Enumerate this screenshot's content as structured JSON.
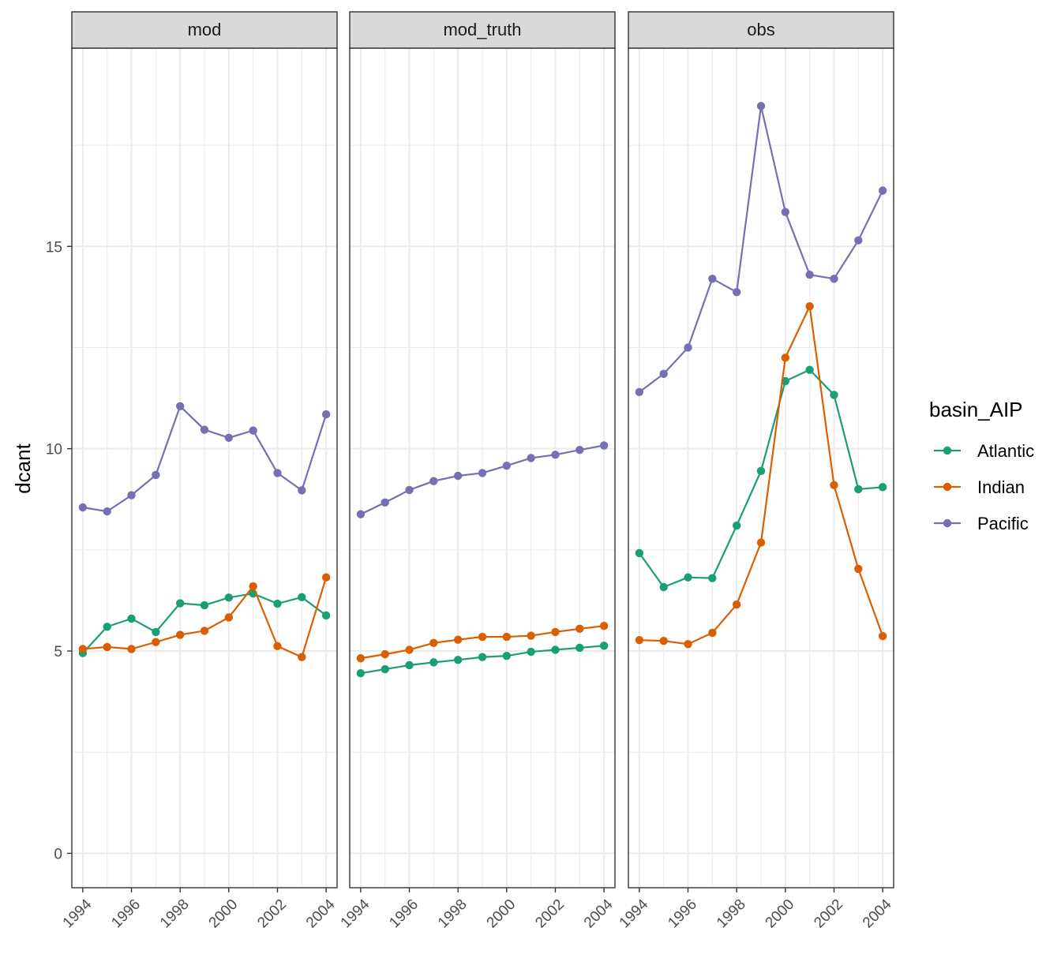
{
  "chart_data": {
    "type": "line",
    "facet_variable_values": [
      "mod",
      "mod_truth",
      "obs"
    ],
    "x": [
      1994,
      1995,
      1996,
      1997,
      1998,
      1999,
      2000,
      2001,
      2002,
      2003,
      2004
    ],
    "x_tick_labels": [
      "1994",
      "1996",
      "1998",
      "2000",
      "2002",
      "2004"
    ],
    "xlim": [
      1993.55,
      2004.45
    ],
    "ylabel": "dcant",
    "y_tick_labels": [
      "0",
      "5",
      "10",
      "15"
    ],
    "ylim": [
      -0.85,
      19.9
    ],
    "grid": true,
    "legend": {
      "title": "basin_AIP",
      "position": "right",
      "entries": [
        "Atlantic",
        "Indian",
        "Pacific"
      ]
    },
    "colors": {
      "Atlantic": "#1b9e77",
      "Indian": "#d95f02",
      "Pacific": "#7570b3"
    },
    "panels": [
      {
        "facet": "mod",
        "series": [
          {
            "name": "Atlantic",
            "values": [
              4.95,
              5.6,
              5.8,
              5.47,
              6.18,
              6.13,
              6.32,
              6.42,
              6.17,
              6.33,
              5.88
            ]
          },
          {
            "name": "Indian",
            "values": [
              5.05,
              5.1,
              5.05,
              5.22,
              5.4,
              5.5,
              5.83,
              6.6,
              5.12,
              4.85,
              6.82
            ]
          },
          {
            "name": "Pacific",
            "values": [
              8.55,
              8.45,
              8.85,
              9.35,
              11.05,
              10.47,
              10.27,
              10.45,
              9.4,
              8.97,
              10.85
            ]
          }
        ]
      },
      {
        "facet": "mod_truth",
        "series": [
          {
            "name": "Atlantic",
            "values": [
              4.45,
              4.55,
              4.65,
              4.72,
              4.78,
              4.85,
              4.88,
              4.98,
              5.03,
              5.08,
              5.13
            ]
          },
          {
            "name": "Indian",
            "values": [
              4.82,
              4.92,
              5.03,
              5.2,
              5.28,
              5.35,
              5.35,
              5.38,
              5.47,
              5.55,
              5.62
            ]
          },
          {
            "name": "Pacific",
            "values": [
              8.38,
              8.67,
              8.98,
              9.2,
              9.33,
              9.4,
              9.58,
              9.77,
              9.85,
              9.97,
              10.08
            ]
          }
        ]
      },
      {
        "facet": "obs",
        "series": [
          {
            "name": "Atlantic",
            "values": [
              7.42,
              6.58,
              6.82,
              6.8,
              8.1,
              9.45,
              11.67,
              11.95,
              11.33,
              9.0,
              9.05
            ]
          },
          {
            "name": "Indian",
            "values": [
              5.27,
              5.25,
              5.17,
              5.45,
              6.15,
              7.68,
              12.25,
              13.52,
              9.1,
              7.03,
              5.37
            ]
          },
          {
            "name": "Pacific",
            "values": [
              11.4,
              11.85,
              12.5,
              14.2,
              13.87,
              18.47,
              15.85,
              14.3,
              14.2,
              15.15,
              16.38
            ]
          }
        ]
      }
    ]
  }
}
